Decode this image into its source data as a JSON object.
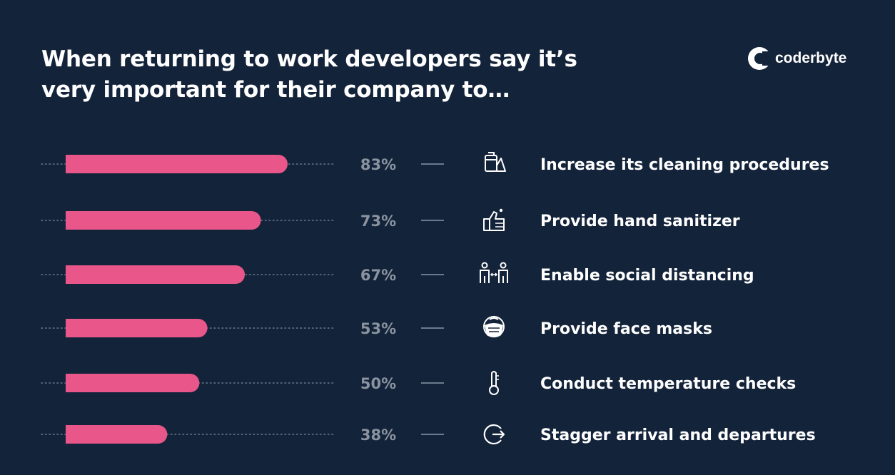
{
  "title_lines": [
    "When returning to work developers say it’s",
    "very important for their company to…"
  ],
  "brand": {
    "name": "coderbyte",
    "logo_icon": "coderbyte-logo-icon"
  },
  "colors": {
    "background": "#13233a",
    "bar": "#e8568a",
    "value_label": "#8a939f",
    "text": "#ffffff"
  },
  "chart_data": {
    "type": "bar",
    "orientation": "horizontal",
    "categories": [
      "Increase its cleaning procedures",
      "Provide hand sanitizer",
      "Enable social distancing",
      "Provide face masks",
      "Conduct temperature checks",
      "Stagger arrival and departures"
    ],
    "values": [
      83,
      73,
      67,
      53,
      50,
      38
    ],
    "value_labels": [
      "83%",
      "73%",
      "67%",
      "53%",
      "50%",
      "38%"
    ],
    "icons": [
      "cleaning-spray-icon",
      "hand-sanitizer-icon",
      "social-distancing-icon",
      "face-mask-icon",
      "thermometer-icon",
      "stagger-arrival-icon"
    ],
    "unit": "%",
    "xlim": [
      0,
      100
    ],
    "grid": false,
    "legend": "none"
  }
}
